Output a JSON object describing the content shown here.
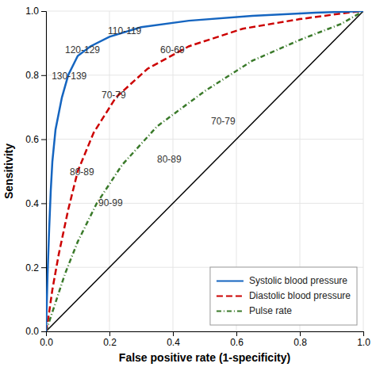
{
  "chart_data": {
    "type": "line",
    "xlabel": "False positive rate (1-specificity)",
    "ylabel": "Sensitivity",
    "xlim": [
      0,
      1.0
    ],
    "ylim": [
      0,
      1.0
    ],
    "xticks": [
      {
        "value": 0,
        "label": "0.0"
      },
      0.2,
      0.4,
      0.6,
      0.8,
      {
        "value": 1.0,
        "label": "1.0"
      }
    ],
    "yticks": [
      {
        "value": 0,
        "label": "0.0"
      },
      0.2,
      0.4,
      0.6,
      0.8,
      {
        "value": 1.0,
        "label": "1.0"
      }
    ],
    "grid": true,
    "legend": "lower right",
    "series": [
      {
        "name": "Systolic blood pressure",
        "color": "#1565c0",
        "line_style": "solid",
        "x": [
          0,
          0.005,
          0.01,
          0.015,
          0.02,
          0.03,
          0.05,
          0.07,
          0.1,
          0.14,
          0.2,
          0.3,
          0.45,
          0.65,
          0.85,
          1.0
        ],
        "values": [
          0,
          0.18,
          0.32,
          0.44,
          0.53,
          0.63,
          0.73,
          0.8,
          0.86,
          0.89,
          0.92,
          0.95,
          0.97,
          0.985,
          0.995,
          1.0
        ]
      },
      {
        "name": "Diastolic blood pressure",
        "color": "#cc0000",
        "line_style": "dashed",
        "x": [
          0,
          0.01,
          0.02,
          0.04,
          0.07,
          0.1,
          0.15,
          0.22,
          0.32,
          0.45,
          0.62,
          0.8,
          0.95,
          1.0
        ],
        "values": [
          0,
          0.06,
          0.13,
          0.24,
          0.38,
          0.5,
          0.62,
          0.73,
          0.82,
          0.89,
          0.945,
          0.975,
          0.995,
          1.0
        ]
      },
      {
        "name": "Pulse rate",
        "color": "#3a7a2a",
        "line_style": "dashdot",
        "x": [
          0,
          0.01,
          0.03,
          0.06,
          0.1,
          0.16,
          0.24,
          0.35,
          0.5,
          0.65,
          0.8,
          0.93,
          1.0
        ],
        "values": [
          0,
          0.03,
          0.09,
          0.18,
          0.28,
          0.4,
          0.52,
          0.64,
          0.75,
          0.845,
          0.91,
          0.96,
          1.0
        ]
      },
      {
        "color": "#000000",
        "line_style": "solid",
        "x": [
          0,
          1.0
        ],
        "values": [
          0,
          1.0
        ]
      }
    ],
    "annotations": [
      {
        "text": "130-139",
        "x": 0.018,
        "y": 0.795
      },
      {
        "text": "120-129",
        "x": 0.06,
        "y": 0.876
      },
      {
        "text": "110-119",
        "x": 0.195,
        "y": 0.935
      },
      {
        "text": "80-89",
        "x": 0.075,
        "y": 0.496
      },
      {
        "text": "70-79",
        "x": 0.175,
        "y": 0.735
      },
      {
        "text": "60-69",
        "x": 0.36,
        "y": 0.876
      },
      {
        "text": "90-99",
        "x": 0.165,
        "y": 0.398
      },
      {
        "text": "80-89",
        "x": 0.35,
        "y": 0.535
      },
      {
        "text": "70-79",
        "x": 0.52,
        "y": 0.655
      }
    ]
  }
}
